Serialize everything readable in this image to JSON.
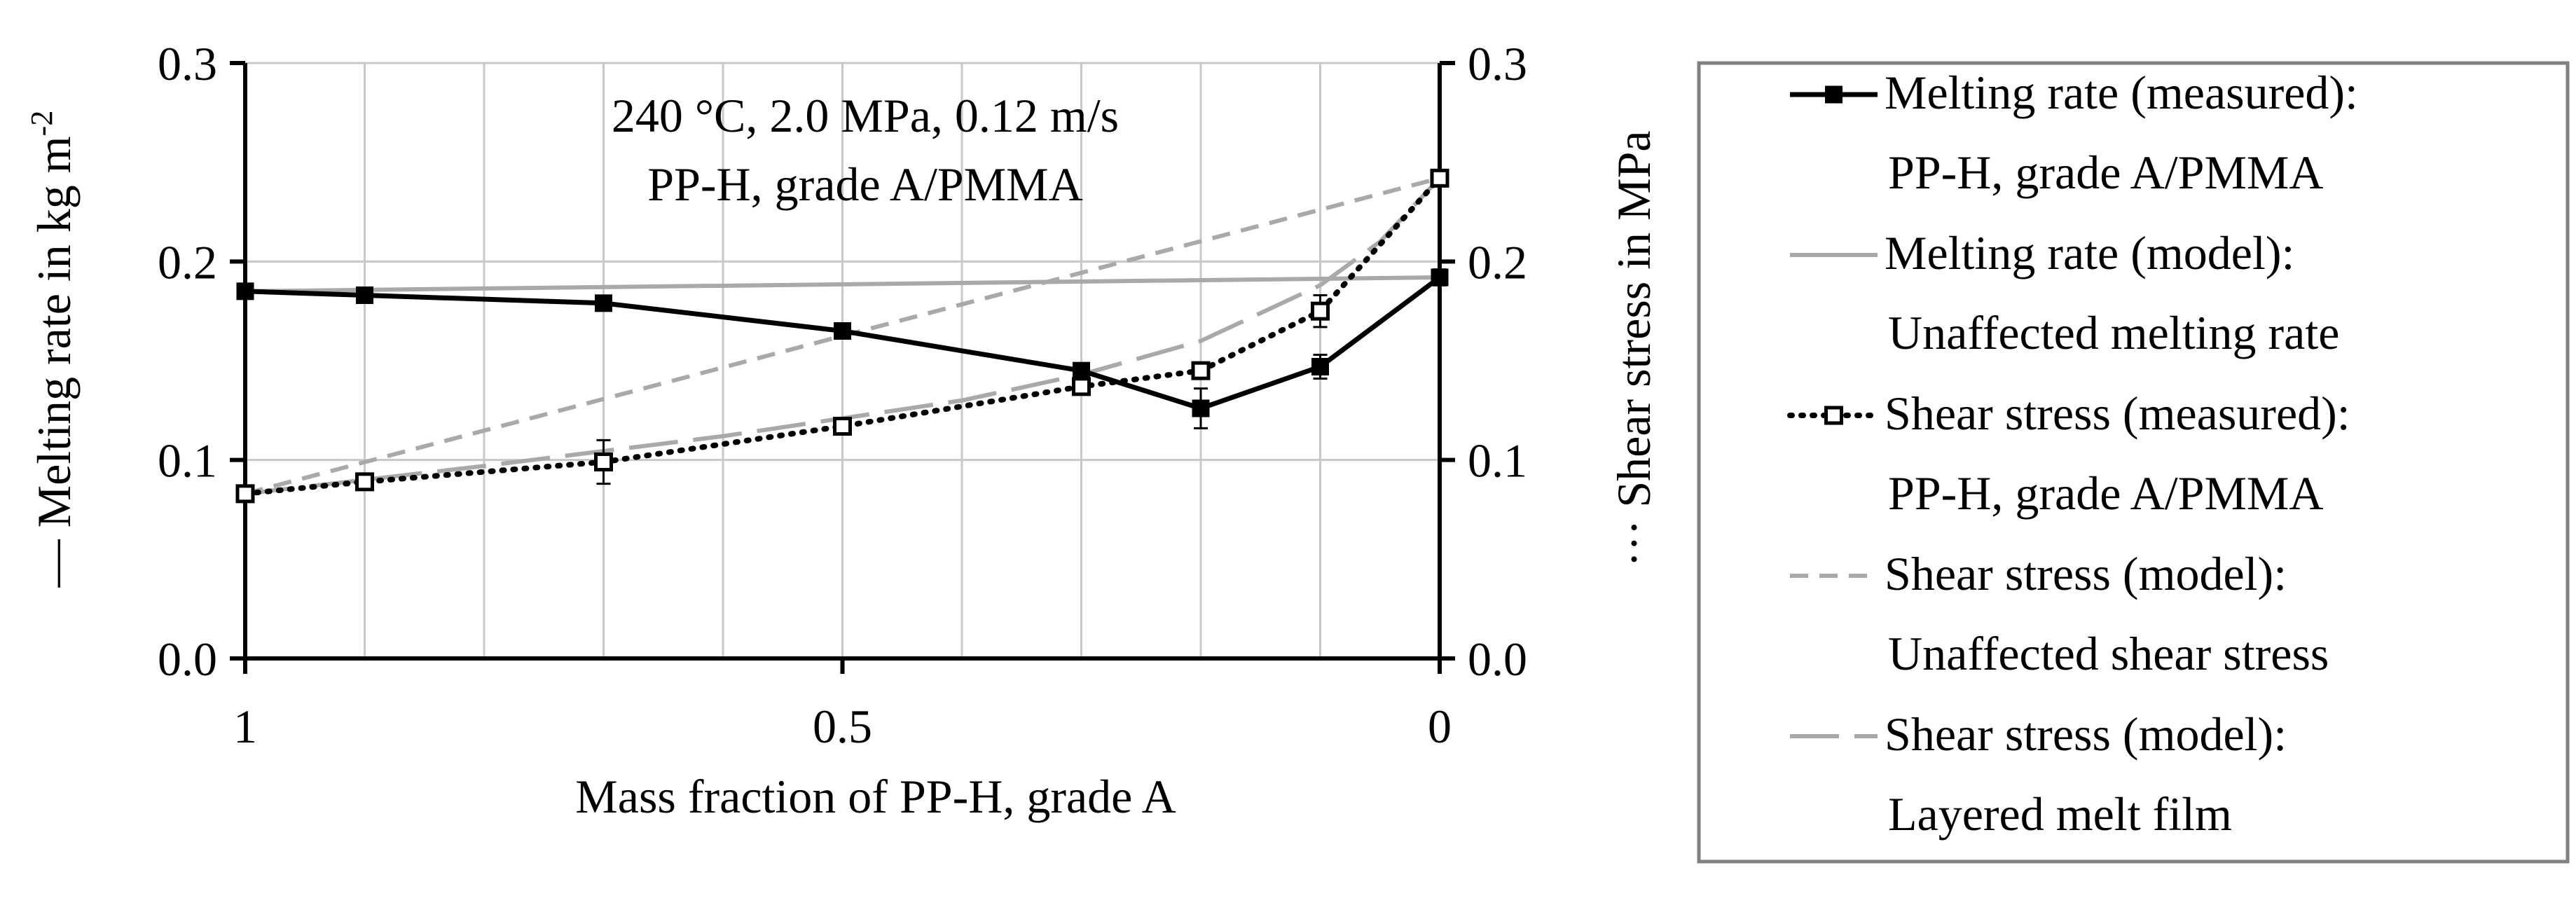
{
  "chart_data": {
    "type": "line",
    "annotation": [
      "240 °C, 2.0 MPa, 0.12 m/s",
      "PP-H, grade A/PMMA"
    ],
    "xlabel": "Mass fraction of PP-H, grade A",
    "ylabel_left": "— Melting rate in kg m",
    "ylabel_left_sup": "-2",
    "ylabel_right": "··· Shear stress in MPa",
    "xlim": [
      1,
      0
    ],
    "x_ticks": [
      1,
      0.5,
      0
    ],
    "x_tick_labels": [
      "1",
      "0.5",
      "0"
    ],
    "x_gridlines": [
      1,
      0.9,
      0.8,
      0.7,
      0.6,
      0.5,
      0.4,
      0.3,
      0.2,
      0.1,
      0
    ],
    "ylim_left": [
      0,
      0.3
    ],
    "ylim_right": [
      0,
      0.3
    ],
    "y_ticks": [
      0,
      0.1,
      0.2,
      0.3
    ],
    "y_tick_labels_left": [
      "0.0",
      "0.1",
      "0.2",
      "0.3"
    ],
    "y_tick_labels_right": [
      "0.0",
      "0.1",
      "0.2",
      "0.3"
    ],
    "series": [
      {
        "name": "Melting rate (measured): PP-H, grade A/PMMA",
        "axis": "left",
        "style": "solid-black-square",
        "x": [
          1,
          0.9,
          0.7,
          0.5,
          0.3,
          0.2,
          0.1,
          0
        ],
        "y": [
          0.185,
          0.183,
          0.179,
          0.165,
          0.145,
          0.126,
          0.147,
          0.192
        ],
        "err": [
          0.002,
          0.003,
          0.003,
          0.003,
          0.003,
          0.01,
          0.006,
          0.004
        ]
      },
      {
        "name": "Melting rate (model): Unaffected melting rate",
        "axis": "left",
        "style": "solid-gray",
        "x": [
          1,
          0
        ],
        "y": [
          0.185,
          0.192
        ]
      },
      {
        "name": "Shear stress (measured): PP-H, grade A/PMMA",
        "axis": "right",
        "style": "dotted-black-open-square",
        "x": [
          1,
          0.9,
          0.7,
          0.5,
          0.3,
          0.2,
          0.1,
          0
        ],
        "y": [
          0.083,
          0.089,
          0.099,
          0.117,
          0.137,
          0.145,
          0.175,
          0.242
        ],
        "err": [
          0.002,
          0.002,
          0.011,
          0.003,
          0.003,
          0.004,
          0.008,
          0.003
        ]
      },
      {
        "name": "Shear stress (model): Unaffected shear stress",
        "axis": "right",
        "style": "short-dash-gray",
        "x": [
          1,
          0
        ],
        "y": [
          0.083,
          0.242
        ]
      },
      {
        "name": "Shear stress (model): Layered melt film",
        "axis": "right",
        "style": "long-dash-gray",
        "x": [
          1,
          0.8,
          0.6,
          0.4,
          0.3,
          0.2,
          0.1,
          0.05,
          0
        ],
        "y": [
          0.083,
          0.097,
          0.112,
          0.13,
          0.143,
          0.16,
          0.188,
          0.21,
          0.242
        ]
      }
    ],
    "legend": [
      {
        "line1": "Melting rate (measured):",
        "line2": "PP-H, grade A/PMMA",
        "style": "solid-black-square"
      },
      {
        "line1": "Melting rate (model):",
        "line2": "Unaffected melting rate",
        "style": "solid-gray"
      },
      {
        "line1": "Shear stress (measured):",
        "line2": "PP-H, grade A/PMMA",
        "style": "dotted-black-open-square"
      },
      {
        "line1": "Shear stress (model):",
        "line2": "Unaffected shear stress",
        "style": "short-dash-gray"
      },
      {
        "line1": "Shear stress (model):",
        "line2": "Layered melt film",
        "style": "long-dash-gray"
      }
    ]
  }
}
